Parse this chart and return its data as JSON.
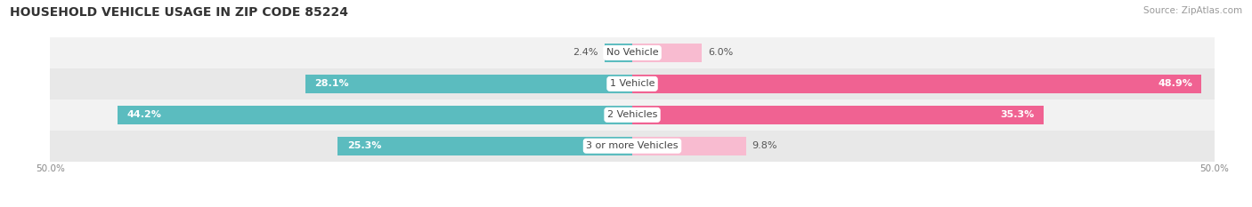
{
  "title": "HOUSEHOLD VEHICLE USAGE IN ZIP CODE 85224",
  "source": "Source: ZipAtlas.com",
  "categories": [
    "No Vehicle",
    "1 Vehicle",
    "2 Vehicles",
    "3 or more Vehicles"
  ],
  "owner_values": [
    2.4,
    28.1,
    44.2,
    25.3
  ],
  "renter_values": [
    6.0,
    48.9,
    35.3,
    9.8
  ],
  "owner_color": "#5bbcbf",
  "renter_color": "#f06292",
  "renter_color_light": "#f8bbd0",
  "row_bg_colors": [
    "#f2f2f2",
    "#e8e8e8",
    "#f2f2f2",
    "#e8e8e8"
  ],
  "axis_min": -50.0,
  "axis_max": 50.0,
  "title_fontsize": 10,
  "source_fontsize": 7.5,
  "label_fontsize": 8,
  "category_fontsize": 8,
  "legend_fontsize": 8,
  "bar_height": 0.6,
  "background_color": "#ffffff"
}
